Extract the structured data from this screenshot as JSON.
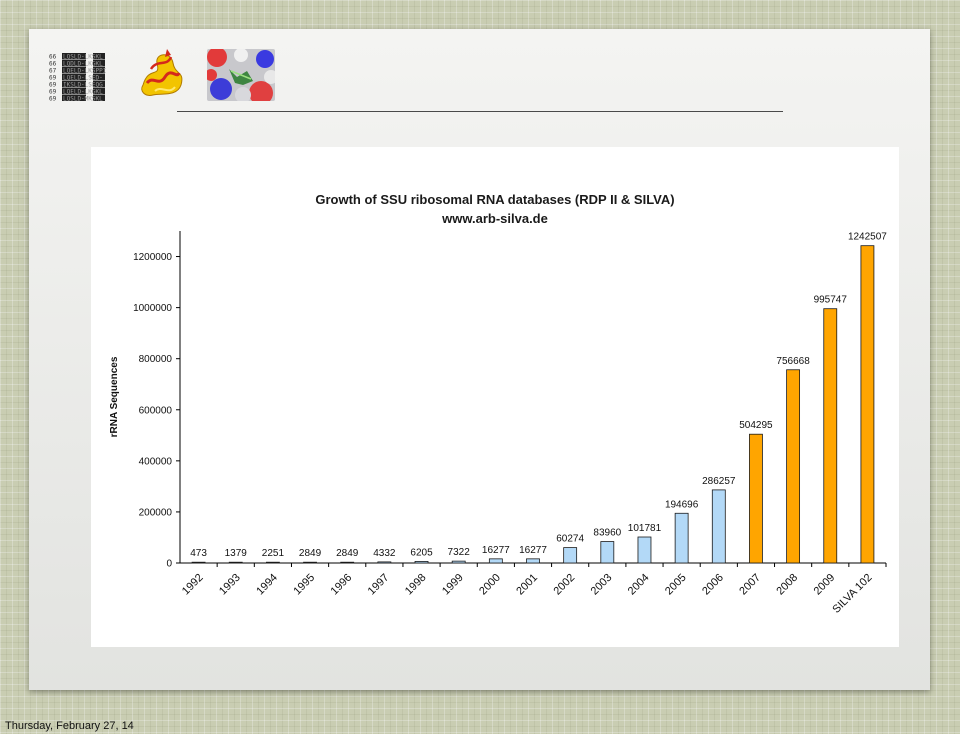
{
  "footer": {
    "date": "Thursday, February 27, 14"
  },
  "logos": {
    "sequence_rows": [
      {
        "num": "66",
        "seq": "LQSLD-LKSKL"
      },
      {
        "num": "66",
        "seq": "LQDLD-LKGKL"
      },
      {
        "num": "67",
        "seq": "LQELD-LKSPPI"
      },
      {
        "num": "69",
        "seq": "LQELD-LSED-"
      },
      {
        "num": "69",
        "seq": "IKSLD-LSEQG"
      },
      {
        "num": "69",
        "seq": "LQELD-LKGKL"
      },
      {
        "num": "69",
        "seq": "LQSLD-MKSKL"
      }
    ]
  },
  "chart_data": {
    "type": "bar",
    "title": "Growth of SSU ribosomal RNA databases (RDP II & SILVA)",
    "subtitle": "www.arb-silva.de",
    "ylabel": "rRNA Sequences",
    "xlabel": "",
    "ylim": [
      0,
      1300000
    ],
    "yticks": [
      0,
      200000,
      400000,
      600000,
      800000,
      1000000,
      1200000
    ],
    "categories": [
      "1992",
      "1993",
      "1994",
      "1995",
      "1996",
      "1997",
      "1998",
      "1999",
      "2000",
      "2001",
      "2002",
      "2003",
      "2004",
      "2005",
      "2006",
      "2007",
      "2008",
      "2009",
      "SILVA 102"
    ],
    "values": [
      473,
      1379,
      2251,
      2849,
      2849,
      4332,
      6205,
      7322,
      16277,
      16277,
      60274,
      83960,
      101781,
      194696,
      286257,
      504295,
      756668,
      995747,
      1242507
    ],
    "bar_colors": [
      "#b3d9f7",
      "#b3d9f7",
      "#b3d9f7",
      "#b3d9f7",
      "#b3d9f7",
      "#b3d9f7",
      "#b3d9f7",
      "#b3d9f7",
      "#b3d9f7",
      "#b3d9f7",
      "#b3d9f7",
      "#b3d9f7",
      "#b3d9f7",
      "#b3d9f7",
      "#b3d9f7",
      "#ffa500",
      "#ffa500",
      "#ffa500",
      "#ffa500"
    ],
    "grid": false,
    "legend": "none"
  }
}
